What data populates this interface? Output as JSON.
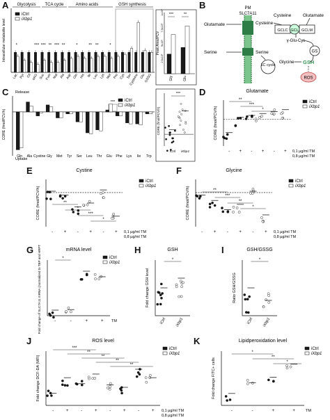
{
  "figure": {
    "panel_labels": [
      "A",
      "B",
      "C",
      "D",
      "E",
      "F",
      "G",
      "H",
      "I",
      "J",
      "K"
    ]
  },
  "colors": {
    "ictrl": "#1a1a1a",
    "ixbp1": "#ffffff",
    "highlight_box": "#999999",
    "diagram_green": "#3a9a5a",
    "ros_red": "#e8a0a0"
  },
  "chart_data": [
    {
      "id": "A",
      "type": "bar",
      "ylabel": "Intracellular metabolite level",
      "group_labels": [
        "Glycolysis",
        "TCA cycle",
        "Amino acids",
        "GSH synthesis"
      ],
      "categories": [
        "Lac",
        "Pyr",
        "Cit",
        "αKG",
        "Suc",
        "Fum",
        "Mal",
        "Ala",
        "Asp",
        "Gln",
        "His",
        "Ile",
        "Leu",
        "Lys",
        "Met",
        "Pro",
        "Cys",
        "Ser",
        "Cysteine",
        "Glu",
        "GSSG"
      ],
      "series": [
        {
          "name": "iCtrl",
          "values": [
            1,
            1,
            1,
            1,
            1,
            1,
            1,
            1,
            1,
            1,
            1,
            1,
            1,
            1,
            1,
            1,
            1,
            1,
            1,
            1,
            1
          ]
        },
        {
          "name": "iXbp1",
          "values": [
            0.8,
            0.6,
            0.5,
            0.4,
            0.6,
            0.5,
            0.5,
            0.6,
            0.7,
            0.8,
            0.7,
            0.7,
            0.8,
            0.8,
            0.7,
            0.8,
            0.9,
            1.2,
            2.5,
            1.1,
            1.0
          ]
        }
      ],
      "sig_labels": [
        "*",
        "***",
        "***",
        "**",
        "***",
        "**",
        "*",
        "**",
        "**",
        "*"
      ],
      "inset": {
        "ylabel": "Peak Area/PCV",
        "tick_labels": [
          "2.5x10⁵",
          "5x10⁵",
          "7.5x10⁵",
          "1x10⁶"
        ],
        "categories": [
          "Gly",
          "Glu"
        ],
        "series": [
          {
            "name": "iCtrl",
            "values": [
              320000,
              430000
            ]
          },
          {
            "name": "iXbp1",
            "values": [
              640000,
              780000
            ]
          }
        ],
        "sig_labels": [
          "***",
          "**"
        ]
      }
    },
    {
      "id": "C",
      "type": "bar",
      "ylabel": "CORE (fmol/PCV/h)",
      "annotations": [
        "Release",
        "Uptake"
      ],
      "categories": [
        "Gln",
        "Ala",
        "Cystine",
        "Gly",
        "Met",
        "Tyr",
        "Ser",
        "Leu",
        "Thr",
        "Glu",
        "Phe",
        "Lys",
        "Ile",
        "Trp"
      ],
      "series": [
        {
          "name": "iCtrl",
          "values": [
            -1.9,
            0.5,
            -0.2,
            0.35,
            -0.3,
            -0.1,
            -0.5,
            -1.05,
            -0.9,
            0.1,
            -0.2,
            -0.55,
            -0.6,
            -0.1
          ]
        },
        {
          "name": "iXbp1",
          "values": [
            -1.8,
            0.3,
            -0.05,
            0.25,
            -0.3,
            -0.1,
            -0.5,
            -1.1,
            -0.95,
            0.4,
            -0.2,
            -0.6,
            -0.65,
            -0.1
          ]
        }
      ],
      "sig_labels": [
        "***"
      ],
      "inset": {
        "ylabel": "CORE (fmol/PCV/h)",
        "categories": [
          "iCtrl",
          "iXbp1"
        ],
        "values": [
          0.08,
          0.4
        ],
        "sig_labels": [
          "***"
        ]
      }
    },
    {
      "id": "D",
      "type": "scatter",
      "title": "Glutamate",
      "ylabel": "CORE (fmol/PCV/h)",
      "conditions": [
        "-",
        "+",
        "-",
        "+",
        "-",
        "+"
      ],
      "treatment_labels": [
        "0,1 µg/ml TM",
        "0,8 µg/ml TM"
      ],
      "groups": [
        "iCtrl",
        "iCtrl",
        "iCtrl",
        "iXbp1",
        "iXbp1",
        "iXbp1"
      ],
      "means": [
        -0.35,
        0.05,
        0.1,
        0.15,
        0.2,
        0.25
      ],
      "sig_labels": [
        "**",
        "***",
        "*"
      ]
    },
    {
      "id": "E",
      "type": "scatter",
      "title": "Cystine",
      "ylabel": "CORE (fmol/PCV/h)",
      "conditions": [
        "-",
        "+",
        "-",
        "+",
        "-",
        "+"
      ],
      "treatment_labels": [
        "0,1 µg/ml TM",
        "0,8 µg/ml TM"
      ],
      "groups": [
        "iCtrl",
        "iCtrl",
        "iCtrl",
        "iXbp1",
        "iXbp1",
        "iXbp1"
      ],
      "means": [
        0.05,
        -0.1,
        -0.55,
        -0.4,
        0.1,
        -0.9
      ],
      "sig_labels": [
        "**",
        "*",
        "***",
        "*"
      ]
    },
    {
      "id": "F",
      "type": "scatter",
      "title": "Glycine",
      "ylabel": "CORE (fmol/PCV/h)",
      "conditions": [
        "-",
        "+",
        "-",
        "+",
        "-",
        "+"
      ],
      "treatment_labels": [
        "0,1 µg/ml TM",
        "0,8 µg/ml TM"
      ],
      "groups": [
        "iCtrl",
        "iCtrl",
        "iCtrl",
        "iXbp1",
        "iXbp1",
        "iXbp1"
      ],
      "means": [
        -0.1,
        -0.3,
        -0.65,
        -0.45,
        0.05,
        -0.85
      ],
      "sig_labels": [
        "**",
        "***",
        "**",
        "*"
      ]
    },
    {
      "id": "G",
      "type": "scatter",
      "title": "mRNA level",
      "ylabel": "Fold change of SLC7A11 mRNA (normalized to TBP and HRPT1)",
      "conditions": [
        "-",
        "-",
        "+",
        "+"
      ],
      "treatment_labels": [
        "TM"
      ],
      "groups": [
        "iCtrl",
        "iXbp1",
        "iCtrl",
        "iXbp1"
      ],
      "means": [
        1.0,
        1.1,
        8.0,
        7.0
      ],
      "sig_labels": [
        "*"
      ]
    },
    {
      "id": "H",
      "type": "scatter",
      "title": "GSH",
      "ylabel": "Fold change GSH level",
      "categories": [
        "iCtrl",
        "iXbp1"
      ],
      "means": [
        1.0,
        1.35
      ],
      "sig_labels": [
        "*"
      ]
    },
    {
      "id": "I",
      "type": "scatter",
      "title": "GSH/GSSG",
      "ylabel": "Ratio GSH/GSSG",
      "categories": [
        "iCtrl",
        "iXbp1"
      ],
      "means": [
        1.0,
        0.55
      ],
      "sig_labels": [
        "*"
      ]
    },
    {
      "id": "J",
      "type": "scatter",
      "title": "ROS level",
      "ylabel": "Fold change DCF-DA (MFI)",
      "conditions": [
        "-",
        "+",
        "-",
        "+",
        "-",
        "+",
        "-",
        "+"
      ],
      "treatment_labels": [
        "0,1 µg/ml TM",
        "0,8 µg/ml TM"
      ],
      "groups": [
        "iCtrl",
        "iCtrl",
        "iCtrl",
        "iXbp1",
        "iXbp1",
        "iCtrl",
        "iCtrl",
        "iXbp1"
      ],
      "means": [
        1.0,
        2.3,
        1.8,
        2.6,
        1.7,
        1.5,
        3.0,
        2.3
      ],
      "sig_labels": [
        "***",
        "**",
        "**",
        "**",
        "**"
      ]
    },
    {
      "id": "K",
      "type": "scatter",
      "title": "Lipidperoxidation level",
      "ylabel": "Fold change FITC+ cells",
      "conditions": [
        "-",
        "-",
        "+",
        "+"
      ],
      "treatment_labels": [
        "TM"
      ],
      "groups": [
        "iCtrl",
        "iXbp1",
        "iCtrl",
        "iXbp1"
      ],
      "means": [
        1.1,
        2.1,
        2.6,
        3.8
      ],
      "sig_labels": [
        "*",
        "**",
        "*"
      ]
    }
  ],
  "legend": {
    "ictrl": "iCtrl",
    "ixbp1": "iXbp1"
  },
  "diagram_B": {
    "nodes": [
      "PM",
      "SLC7A11",
      "Glutamate",
      "Cysteine",
      "Cysteine",
      "Glutamate",
      "GCLC",
      "GCL",
      "GCLM",
      "γ-Glu-Cys",
      "GS",
      "Serine",
      "Serine",
      "1C cycle",
      "Glycine",
      "GSH",
      "ROS"
    ]
  }
}
